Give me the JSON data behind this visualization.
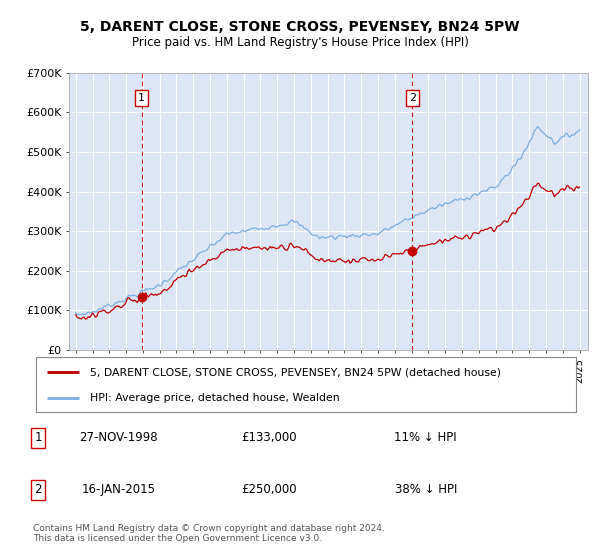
{
  "title": "5, DARENT CLOSE, STONE CROSS, PEVENSEY, BN24 5PW",
  "subtitle": "Price paid vs. HM Land Registry's House Price Index (HPI)",
  "ylim": [
    0,
    700000
  ],
  "yticks": [
    0,
    100000,
    200000,
    300000,
    400000,
    500000,
    600000,
    700000
  ],
  "ytick_labels": [
    "£0",
    "£100K",
    "£200K",
    "£300K",
    "£400K",
    "£500K",
    "£600K",
    "£700K"
  ],
  "plot_bg_color": "#dce6f5",
  "grid_color": "#ffffff",
  "sale1_price": 133000,
  "sale1_label": "1",
  "sale1_x": 1998.92,
  "sale2_price": 250000,
  "sale2_label": "2",
  "sale2_x": 2015.04,
  "hpi_line_color": "#7aafe0",
  "price_line_color": "#c00000",
  "marker_color": "#c00000",
  "vline_color": "#c00000",
  "legend1_label": "5, DARENT CLOSE, STONE CROSS, PEVENSEY, BN24 5PW (detached house)",
  "legend2_label": "HPI: Average price, detached house, Wealden",
  "footnote": "Contains HM Land Registry data © Crown copyright and database right 2024.\nThis data is licensed under the Open Government Licence v3.0.",
  "table_rows": [
    [
      "1",
      "27-NOV-1998",
      "£133,000",
      "11% ↓ HPI"
    ],
    [
      "2",
      "16-JAN-2015",
      "£250,000",
      "38% ↓ HPI"
    ]
  ]
}
